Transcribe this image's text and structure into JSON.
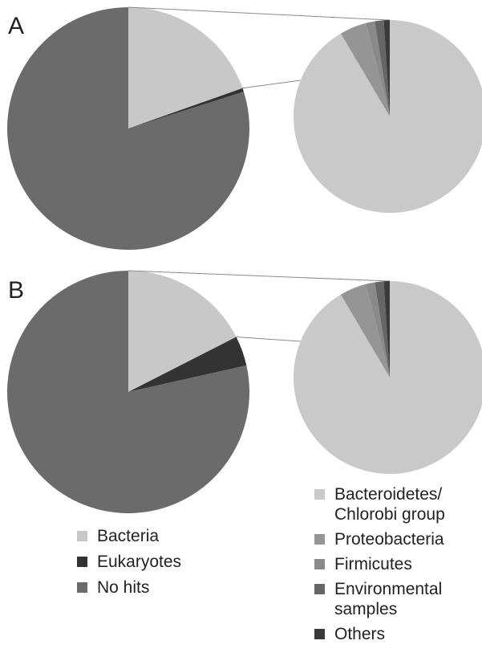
{
  "chart_data": [
    {
      "type": "pie",
      "panel": "A",
      "categories": [
        "Bacteria",
        "Eukaryotes",
        "No hits"
      ],
      "values": [
        19.6,
        0.5,
        79.9
      ],
      "detail": {
        "categories": [
          "Bacteroidetes/ Chlorobi group",
          "Proteobacteria",
          "Firmicutes",
          "Environmental samples",
          "Others"
        ],
        "values": [
          91.5,
          4.5,
          1.5,
          1.5,
          1.0
        ]
      }
    },
    {
      "type": "pie",
      "panel": "B",
      "categories": [
        "Bacteria",
        "Eukaryotes",
        "No hits"
      ],
      "values": [
        17.5,
        4.0,
        78.5
      ],
      "detail": {
        "categories": [
          "Bacteroidetes/ Chlorobi group",
          "Proteobacteria",
          "Firmicutes",
          "Environmental samples",
          "Others"
        ],
        "values": [
          91.5,
          4.5,
          1.5,
          1.5,
          1.0
        ]
      }
    }
  ],
  "legend_main": [
    {
      "label": "Bacteria",
      "color": "#c8c8c8"
    },
    {
      "label": "Eukaryotes",
      "color": "#333333"
    },
    {
      "label": "No hits",
      "color": "#6b6b6b"
    }
  ],
  "legend_detail": [
    {
      "line1": "Bacteroidetes/",
      "line2": "Chlorobi group",
      "color": "#c9c9c9"
    },
    {
      "line1": "Proteobacteria",
      "line2": "",
      "color": "#959595"
    },
    {
      "line1": "Firmicutes",
      "line2": "",
      "color": "#8a8a8a"
    },
    {
      "line1": "Environmental",
      "line2": "samples",
      "color": "#666666"
    },
    {
      "line1": "Others",
      "line2": "",
      "color": "#3a3a3a"
    }
  ],
  "colors": {
    "connector": "#8a8a8a"
  }
}
